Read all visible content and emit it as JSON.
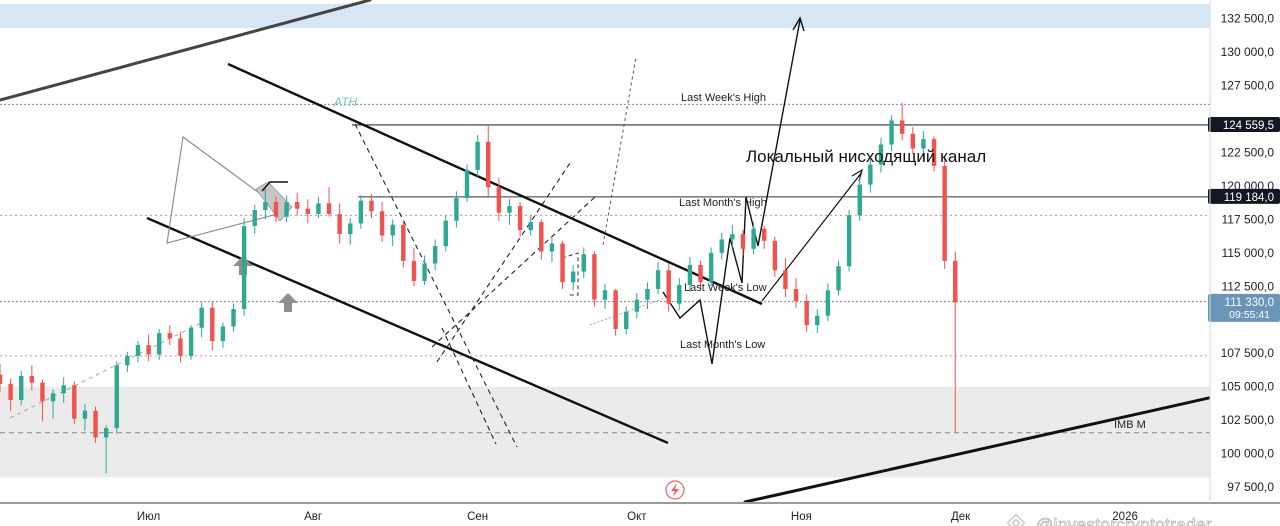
{
  "chart_data": {
    "type": "candlestick",
    "y_ticks": [
      "132 500,0",
      "130 000,0",
      "127 500,0",
      "122 500,0",
      "120 000,0",
      "117 500,0",
      "115 000,0",
      "112 500,0",
      "107 500,0",
      "105 000,0",
      "102 500,0",
      "100 000,0",
      "97 500,0"
    ],
    "y_tick_values": [
      132500,
      130000,
      127500,
      122500,
      120000,
      117500,
      115000,
      112500,
      107500,
      105000,
      102500,
      100000,
      97500
    ],
    "x_ticks": [
      "Июл",
      "Авг",
      "Сен",
      "Окт",
      "Ноя",
      "Дек",
      "2026"
    ],
    "x_tick_dates": [
      "2025-07-01",
      "2025-08-01",
      "2025-09-01",
      "2025-10-01",
      "2025-11-01",
      "2025-12-01",
      "2026-01-01"
    ],
    "y_range": [
      96300,
      133900
    ],
    "x_range": [
      "2025-06-03",
      "2026-01-17"
    ],
    "levels": [
      {
        "label": "Last Week's High",
        "value": 126100
      },
      {
        "label": "Last Month's High",
        "value": 117800
      },
      {
        "label": "Last Week's Low",
        "value": 111350
      },
      {
        "label": "Last Month's Low",
        "value": 107300
      },
      {
        "label": "IMB M",
        "value": 101550
      }
    ],
    "price_tags": [
      {
        "text": "124 559,5",
        "value": 124559.5,
        "color": "#131722"
      },
      {
        "text": "119 184,0",
        "value": 119184.0,
        "color": "#131722"
      },
      {
        "text": "111 330,0",
        "value": 111330.0,
        "color": "#6b95b8",
        "timer": "09:55:41"
      }
    ],
    "horizontal_lines": [
      124559.5,
      119184.0
    ],
    "zones": [
      {
        "name": "supply",
        "from": 131800,
        "to": 133600,
        "color": "#d7e6f4"
      },
      {
        "name": "demand",
        "from": 98200,
        "to": 105000,
        "color": "#ebebeb"
      }
    ],
    "labels": {
      "ath": "ATH",
      "annotation": "Локальный нисходящий канал",
      "watermark": "@investorcryptotrader"
    },
    "candles": [
      [
        "2025-06-03",
        105900,
        106700,
        104600,
        105200
      ],
      [
        "2025-06-05",
        105200,
        105600,
        103200,
        104000
      ],
      [
        "2025-06-07",
        104000,
        106200,
        103600,
        105800
      ],
      [
        "2025-06-09",
        105800,
        106600,
        104700,
        105300
      ],
      [
        "2025-06-11",
        105300,
        105500,
        102400,
        103900
      ],
      [
        "2025-06-13",
        103900,
        104800,
        102600,
        104500
      ],
      [
        "2025-06-15",
        104500,
        105700,
        103800,
        105100
      ],
      [
        "2025-06-17",
        105100,
        105400,
        102200,
        102600
      ],
      [
        "2025-06-19",
        102600,
        103700,
        101700,
        103200
      ],
      [
        "2025-06-21",
        103200,
        103500,
        100800,
        101200
      ],
      [
        "2025-06-23",
        101200,
        102100,
        98500,
        101900
      ],
      [
        "2025-06-25",
        101900,
        106900,
        101500,
        106600
      ],
      [
        "2025-06-27",
        106600,
        107600,
        106100,
        107300
      ],
      [
        "2025-06-29",
        107300,
        108400,
        106800,
        108100
      ],
      [
        "2025-07-01",
        108100,
        108900,
        106900,
        107400
      ],
      [
        "2025-07-03",
        107400,
        109300,
        107000,
        109000
      ],
      [
        "2025-07-05",
        109000,
        109600,
        108100,
        108600
      ],
      [
        "2025-07-07",
        108600,
        109100,
        106800,
        107300
      ],
      [
        "2025-07-09",
        107300,
        109600,
        107000,
        109400
      ],
      [
        "2025-07-11",
        109400,
        111300,
        108700,
        110900
      ],
      [
        "2025-07-13",
        110900,
        111400,
        107700,
        108400
      ],
      [
        "2025-07-15",
        108400,
        109800,
        107900,
        109500
      ],
      [
        "2025-07-17",
        109500,
        111200,
        109100,
        110800
      ],
      [
        "2025-07-19",
        110800,
        117600,
        110300,
        117000
      ],
      [
        "2025-07-21",
        117000,
        118600,
        116400,
        118200
      ],
      [
        "2025-07-23",
        118200,
        119800,
        117500,
        118800
      ],
      [
        "2025-07-25",
        118800,
        119200,
        117300,
        117700
      ],
      [
        "2025-07-27",
        117700,
        119300,
        117300,
        118800
      ],
      [
        "2025-07-29",
        118800,
        119500,
        117800,
        118300
      ],
      [
        "2025-07-31",
        118300,
        119000,
        117200,
        117900
      ],
      [
        "2025-08-02",
        117900,
        119200,
        117600,
        118700
      ],
      [
        "2025-08-04",
        118700,
        119900,
        117700,
        117900
      ],
      [
        "2025-08-06",
        117900,
        118700,
        115700,
        116400
      ],
      [
        "2025-08-08",
        116400,
        117600,
        115600,
        117200
      ],
      [
        "2025-08-10",
        117200,
        119300,
        116800,
        118900
      ],
      [
        "2025-08-12",
        118900,
        119400,
        117600,
        118100
      ],
      [
        "2025-08-14",
        118100,
        118800,
        115800,
        116300
      ],
      [
        "2025-08-16",
        116300,
        117500,
        115500,
        117100
      ],
      [
        "2025-08-18",
        117100,
        117400,
        113900,
        114400
      ],
      [
        "2025-08-20",
        114400,
        115400,
        112500,
        112900
      ],
      [
        "2025-08-22",
        112900,
        114800,
        112600,
        114200
      ],
      [
        "2025-08-24",
        114200,
        116000,
        113700,
        115500
      ],
      [
        "2025-08-26",
        115500,
        117800,
        115100,
        117400
      ],
      [
        "2025-08-28",
        117400,
        119600,
        116900,
        119100
      ],
      [
        "2025-08-30",
        119100,
        121600,
        118800,
        121200
      ],
      [
        "2025-09-01",
        121200,
        123800,
        120700,
        123300
      ],
      [
        "2025-09-03",
        123300,
        124559.5,
        119200,
        119900
      ],
      [
        "2025-09-05",
        119900,
        120600,
        117400,
        118000
      ],
      [
        "2025-09-07",
        118000,
        119000,
        117100,
        118500
      ],
      [
        "2025-09-09",
        118500,
        118800,
        116200,
        116700
      ],
      [
        "2025-09-11",
        116700,
        117800,
        116300,
        117300
      ],
      [
        "2025-09-13",
        117300,
        117500,
        114500,
        115100
      ],
      [
        "2025-09-15",
        115100,
        116200,
        114300,
        115700
      ],
      [
        "2025-09-17",
        115700,
        115900,
        112300,
        112800
      ],
      [
        "2025-09-19",
        112800,
        114100,
        112200,
        113600
      ],
      [
        "2025-09-21",
        113600,
        115400,
        113100,
        114900
      ],
      [
        "2025-09-23",
        114900,
        115100,
        111000,
        111500
      ],
      [
        "2025-09-25",
        111500,
        112700,
        110800,
        112200
      ],
      [
        "2025-09-27",
        112200,
        112300,
        108800,
        109300
      ],
      [
        "2025-09-29",
        109300,
        111000,
        108900,
        110600
      ],
      [
        "2025-10-01",
        110600,
        112000,
        110100,
        111500
      ],
      [
        "2025-10-03",
        111500,
        112800,
        110800,
        112300
      ],
      [
        "2025-10-05",
        112300,
        114300,
        111900,
        113700
      ],
      [
        "2025-10-07",
        113700,
        114200,
        110600,
        111200
      ],
      [
        "2025-10-09",
        111200,
        113100,
        110700,
        112600
      ],
      [
        "2025-10-11",
        112600,
        114700,
        112100,
        114100
      ],
      [
        "2025-10-13",
        114100,
        114400,
        112300,
        112800
      ],
      [
        "2025-10-15",
        112800,
        115400,
        112500,
        115000
      ],
      [
        "2025-10-17",
        115000,
        116500,
        114500,
        116000
      ],
      [
        "2025-10-19",
        116000,
        117100,
        115400,
        116400
      ],
      [
        "2025-10-21",
        116400,
        116700,
        114800,
        115300
      ],
      [
        "2025-10-23",
        115300,
        117300,
        114900,
        116800
      ],
      [
        "2025-10-25",
        116800,
        117000,
        115300,
        115900
      ],
      [
        "2025-10-27",
        115900,
        116200,
        113200,
        113700
      ],
      [
        "2025-10-29",
        113700,
        114600,
        111700,
        112300
      ],
      [
        "2025-10-31",
        112300,
        113100,
        110900,
        111400
      ],
      [
        "2025-11-02",
        111400,
        111900,
        109100,
        109600
      ],
      [
        "2025-11-04",
        109600,
        110800,
        109000,
        110300
      ],
      [
        "2025-11-06",
        110300,
        112700,
        109900,
        112200
      ],
      [
        "2025-11-08",
        112200,
        114400,
        111800,
        114000
      ],
      [
        "2025-11-10",
        114000,
        118200,
        113600,
        117800
      ],
      [
        "2025-11-12",
        117800,
        120600,
        117400,
        120100
      ],
      [
        "2025-11-14",
        120100,
        122100,
        119500,
        121600
      ],
      [
        "2025-11-16",
        121600,
        123600,
        121000,
        123100
      ],
      [
        "2025-11-18",
        123100,
        125300,
        122600,
        124900
      ],
      [
        "2025-11-20",
        124900,
        126200,
        123400,
        123900
      ],
      [
        "2025-11-22",
        123900,
        124400,
        122400,
        122800
      ],
      [
        "2025-11-24",
        122800,
        124100,
        121800,
        123500
      ],
      [
        "2025-11-26",
        123500,
        123700,
        121100,
        121500
      ],
      [
        "2025-11-28",
        121500,
        122200,
        113800,
        114400
      ],
      [
        "2025-11-30",
        114400,
        115100,
        101600,
        111300
      ]
    ]
  }
}
